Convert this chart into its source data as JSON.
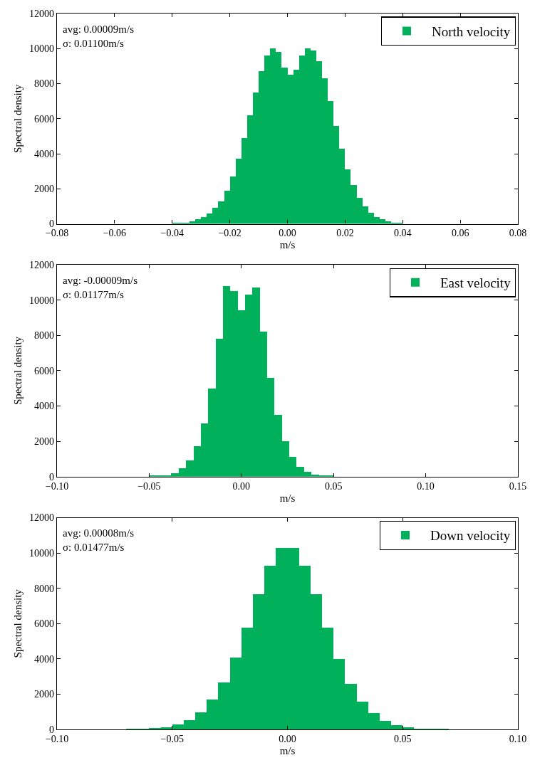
{
  "chart_data": [
    {
      "type": "histogram",
      "xlabel": "m/s",
      "ylabel": "Spectral density",
      "legend": "top right",
      "annotations": [
        "avg: 0.00009m/s",
        "σ: 0.01100m/s"
      ],
      "bins": [
        -0.04,
        -0.038,
        -0.036,
        -0.034,
        -0.032,
        -0.03,
        -0.028,
        -0.026,
        -0.024,
        -0.022,
        -0.02,
        -0.018,
        -0.016,
        -0.014,
        -0.012,
        -0.01,
        -0.008,
        -0.006,
        -0.004,
        -0.002,
        0.0,
        0.002,
        0.004,
        0.006,
        0.008,
        0.01,
        0.012,
        0.014,
        0.016,
        0.018,
        0.02,
        0.022,
        0.024,
        0.026,
        0.028,
        0.03,
        0.032,
        0.034,
        0.036,
        0.038,
        0.04
      ],
      "series": [
        {
          "name": "North velocity",
          "color": "#00b05a",
          "values": [
            50,
            60,
            80,
            150,
            250,
            400,
            600,
            900,
            1300,
            1900,
            2700,
            3700,
            4900,
            6200,
            7500,
            8700,
            9600,
            10000,
            9800,
            8900,
            8500,
            8800,
            9600,
            10000,
            9900,
            9300,
            8300,
            7000,
            5600,
            4300,
            3100,
            2200,
            1500,
            1000,
            650,
            400,
            250,
            150,
            80,
            40
          ]
        }
      ],
      "xlim": [
        -0.08,
        0.08
      ],
      "xticks": [
        {
          "value": -0.08,
          "label": "−0.08"
        },
        {
          "value": -0.06,
          "label": "−0.06"
        },
        {
          "value": -0.04,
          "label": "−0.04"
        },
        {
          "value": -0.02,
          "label": "−0.02"
        },
        {
          "value": 0,
          "label": "0.00"
        },
        {
          "value": 0.02,
          "label": "0.02"
        },
        {
          "value": 0.04,
          "label": "0.04"
        },
        {
          "value": 0.06,
          "label": "0.06"
        },
        {
          "value": 0.08,
          "label": "0.08"
        }
      ],
      "ylim": [
        0,
        12000
      ],
      "yticks": [
        0,
        2000,
        4000,
        6000,
        8000,
        10000,
        12000
      ]
    },
    {
      "type": "histogram",
      "xlabel": "m/s",
      "ylabel": "Spectral density",
      "legend": "top right",
      "annotations": [
        "avg: -0.00009m/s",
        "σ: 0.01177m/s"
      ],
      "bins": [
        -0.05,
        -0.046,
        -0.042,
        -0.038,
        -0.034,
        -0.03,
        -0.026,
        -0.022,
        -0.018,
        -0.014,
        -0.01,
        -0.006,
        -0.002,
        0.002,
        0.006,
        0.01,
        0.014,
        0.018,
        0.022,
        0.026,
        0.03,
        0.034,
        0.038,
        0.042,
        0.046,
        0.05
      ],
      "series": [
        {
          "name": "East velocity",
          "color": "#00b05a",
          "values": [
            50,
            60,
            80,
            200,
            450,
            900,
            1700,
            3000,
            5000,
            7800,
            10800,
            10500,
            9400,
            10300,
            10700,
            8200,
            5600,
            3500,
            2000,
            1100,
            550,
            250,
            120,
            60,
            50
          ]
        }
      ],
      "xlim": [
        -0.1,
        0.15
      ],
      "xticks": [
        {
          "value": -0.1,
          "label": "−0.10"
        },
        {
          "value": -0.05,
          "label": "−0.05"
        },
        {
          "value": 0,
          "label": "0.00"
        },
        {
          "value": 0.05,
          "label": "0.05"
        },
        {
          "value": 0.1,
          "label": "0.10"
        },
        {
          "value": 0.15,
          "label": "0.15"
        }
      ],
      "ylim": [
        0,
        12000
      ],
      "yticks": [
        0,
        2000,
        4000,
        6000,
        8000,
        10000,
        12000
      ]
    },
    {
      "type": "histogram",
      "xlabel": "m/s",
      "ylabel": "Spectral density",
      "legend": "top right",
      "annotations": [
        "avg: 0.00008m/s",
        "σ: 0.01477m/s"
      ],
      "bins": [
        -0.07,
        -0.065,
        -0.06,
        -0.055,
        -0.05,
        -0.045,
        -0.04,
        -0.035,
        -0.03,
        -0.025,
        -0.02,
        -0.015,
        -0.01,
        -0.005,
        0.0,
        0.005,
        0.01,
        0.015,
        0.02,
        0.025,
        0.03,
        0.035,
        0.04,
        0.045,
        0.05,
        0.055,
        0.06,
        0.065,
        0.07
      ],
      "series": [
        {
          "name": "Down velocity",
          "color": "#00b05a",
          "values": [
            50,
            60,
            80,
            150,
            300,
            550,
            1000,
            1700,
            2700,
            4100,
            5800,
            7700,
            9300,
            10300,
            10300,
            9300,
            7700,
            5800,
            4000,
            2600,
            1600,
            950,
            500,
            280,
            140,
            70,
            60,
            50
          ]
        }
      ],
      "xlim": [
        -0.1,
        0.1
      ],
      "xticks": [
        {
          "value": -0.1,
          "label": "−0.10"
        },
        {
          "value": -0.05,
          "label": "−0.05"
        },
        {
          "value": 0,
          "label": "0.00"
        },
        {
          "value": 0.05,
          "label": "0.05"
        },
        {
          "value": 0.1,
          "label": "0.10"
        }
      ],
      "ylim": [
        0,
        12000
      ],
      "yticks": [
        0,
        2000,
        4000,
        6000,
        8000,
        10000,
        12000
      ]
    }
  ]
}
